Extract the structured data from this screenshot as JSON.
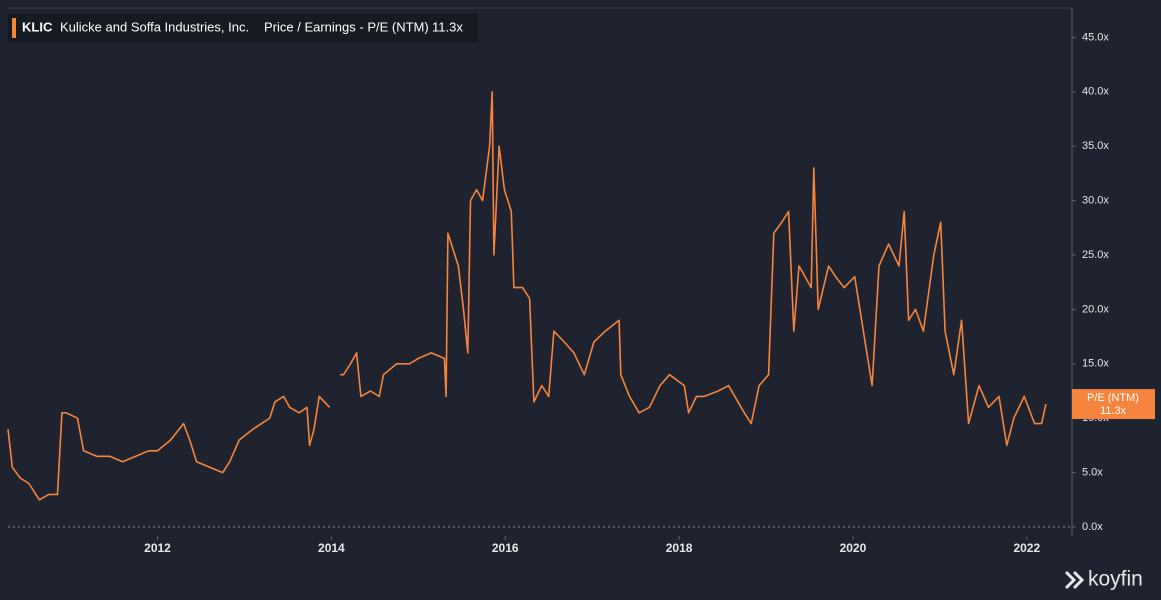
{
  "header": {
    "ticker": "KLIC",
    "company": "Kulicke and Soffa Industries, Inc.",
    "metric": "Price / Earnings - P/E (NTM)",
    "current": "11.3x"
  },
  "logo": "koyfin",
  "chart_data": {
    "type": "line",
    "xlim": [
      2010.28,
      2022.52
    ],
    "ylim": [
      0,
      47.7
    ],
    "xticks": [
      2012,
      2014,
      2016,
      2018,
      2020,
      2022
    ],
    "yticks": [
      {
        "value": 0,
        "label": "0.0x"
      },
      {
        "value": 5,
        "label": "5.0x"
      },
      {
        "value": 10,
        "label": "10.0x"
      },
      {
        "value": 15,
        "label": "15.0x"
      },
      {
        "value": 20,
        "label": "20.0x"
      },
      {
        "value": 25,
        "label": "25.0x"
      },
      {
        "value": 30,
        "label": "30.0x"
      },
      {
        "value": 35,
        "label": "35.0x"
      },
      {
        "value": 40,
        "label": "40.0x"
      },
      {
        "value": 45,
        "label": "45.0x"
      }
    ],
    "series": [
      {
        "name": "P/E (NTM)",
        "color": "#f5843c",
        "last_label": "11.3x",
        "x": [
          2010.28,
          2010.33,
          2010.42,
          2010.52,
          2010.64,
          2010.75,
          2010.85,
          2010.9,
          2010.95,
          2011.08,
          2011.15,
          2011.3,
          2011.45,
          2011.6,
          2011.75,
          2011.9,
          2012.0,
          2012.15,
          2012.3,
          2012.37,
          2012.45,
          2012.6,
          2012.75,
          2012.83,
          2012.94,
          2013.1,
          2013.29,
          2013.35,
          2013.45,
          2013.52,
          2013.63,
          2013.72,
          2013.75,
          2013.8,
          2013.86,
          2013.98,
          2014.07,
          2014.1,
          2014.14,
          2014.22,
          2014.29,
          2014.34,
          2014.45,
          2014.55,
          2014.6,
          2014.75,
          2014.9,
          2015.0,
          2015.15,
          2015.3,
          2015.32,
          2015.34,
          2015.46,
          2015.52,
          2015.57,
          2015.6,
          2015.67,
          2015.74,
          2015.82,
          2015.85,
          2015.87,
          2015.93,
          2015.99,
          2016.07,
          2016.1,
          2016.2,
          2016.28,
          2016.33,
          2016.42,
          2016.5,
          2016.56,
          2016.68,
          2016.79,
          2016.91,
          2017.02,
          2017.15,
          2017.31,
          2017.33,
          2017.43,
          2017.54,
          2017.66,
          2017.78,
          2017.89,
          2018.06,
          2018.11,
          2018.2,
          2018.29,
          2018.45,
          2018.57,
          2018.75,
          2018.83,
          2018.92,
          2019.03,
          2019.09,
          2019.18,
          2019.26,
          2019.32,
          2019.38,
          2019.52,
          2019.55,
          2019.6,
          2019.72,
          2019.8,
          2019.9,
          2020.02,
          2020.14,
          2020.22,
          2020.3,
          2020.41,
          2020.53,
          2020.59,
          2020.64,
          2020.72,
          2020.81,
          2020.93,
          2021.01,
          2021.06,
          2021.16,
          2021.25,
          2021.33,
          2021.45,
          2021.56,
          2021.68,
          2021.77,
          2021.85,
          2021.97,
          2022.09,
          2022.17,
          2022.22
        ],
        "values": [
          9,
          5.5,
          4.5,
          4,
          2.5,
          3,
          3,
          10.5,
          10.5,
          10,
          7,
          6.5,
          6.5,
          6,
          6.5,
          7,
          7,
          8,
          9.5,
          8,
          6,
          5.5,
          5,
          6,
          8,
          9,
          10,
          11.5,
          12,
          11,
          10.5,
          11,
          7.5,
          9,
          12,
          11,
          null,
          14,
          14,
          15,
          16,
          12,
          12.5,
          12,
          14,
          15,
          15,
          15.5,
          16,
          15.5,
          12,
          27,
          24,
          20,
          16,
          30,
          31,
          30,
          35,
          40,
          25,
          35,
          31,
          29,
          22,
          22,
          21,
          11.5,
          13,
          12,
          18,
          17,
          16,
          14,
          17,
          18,
          19,
          14,
          12,
          10.5,
          11,
          13,
          14,
          13,
          10.5,
          12,
          12,
          12.5,
          13,
          10.5,
          9.5,
          13,
          14,
          27,
          28,
          29,
          18,
          24,
          22,
          33,
          20,
          24,
          23,
          22,
          23,
          17,
          13,
          24,
          26,
          24,
          29,
          19,
          20,
          18,
          25,
          28,
          18,
          14,
          19,
          9.5,
          13,
          11,
          12,
          7.5,
          10,
          12,
          9.5,
          9.5,
          11.3
        ]
      }
    ]
  }
}
